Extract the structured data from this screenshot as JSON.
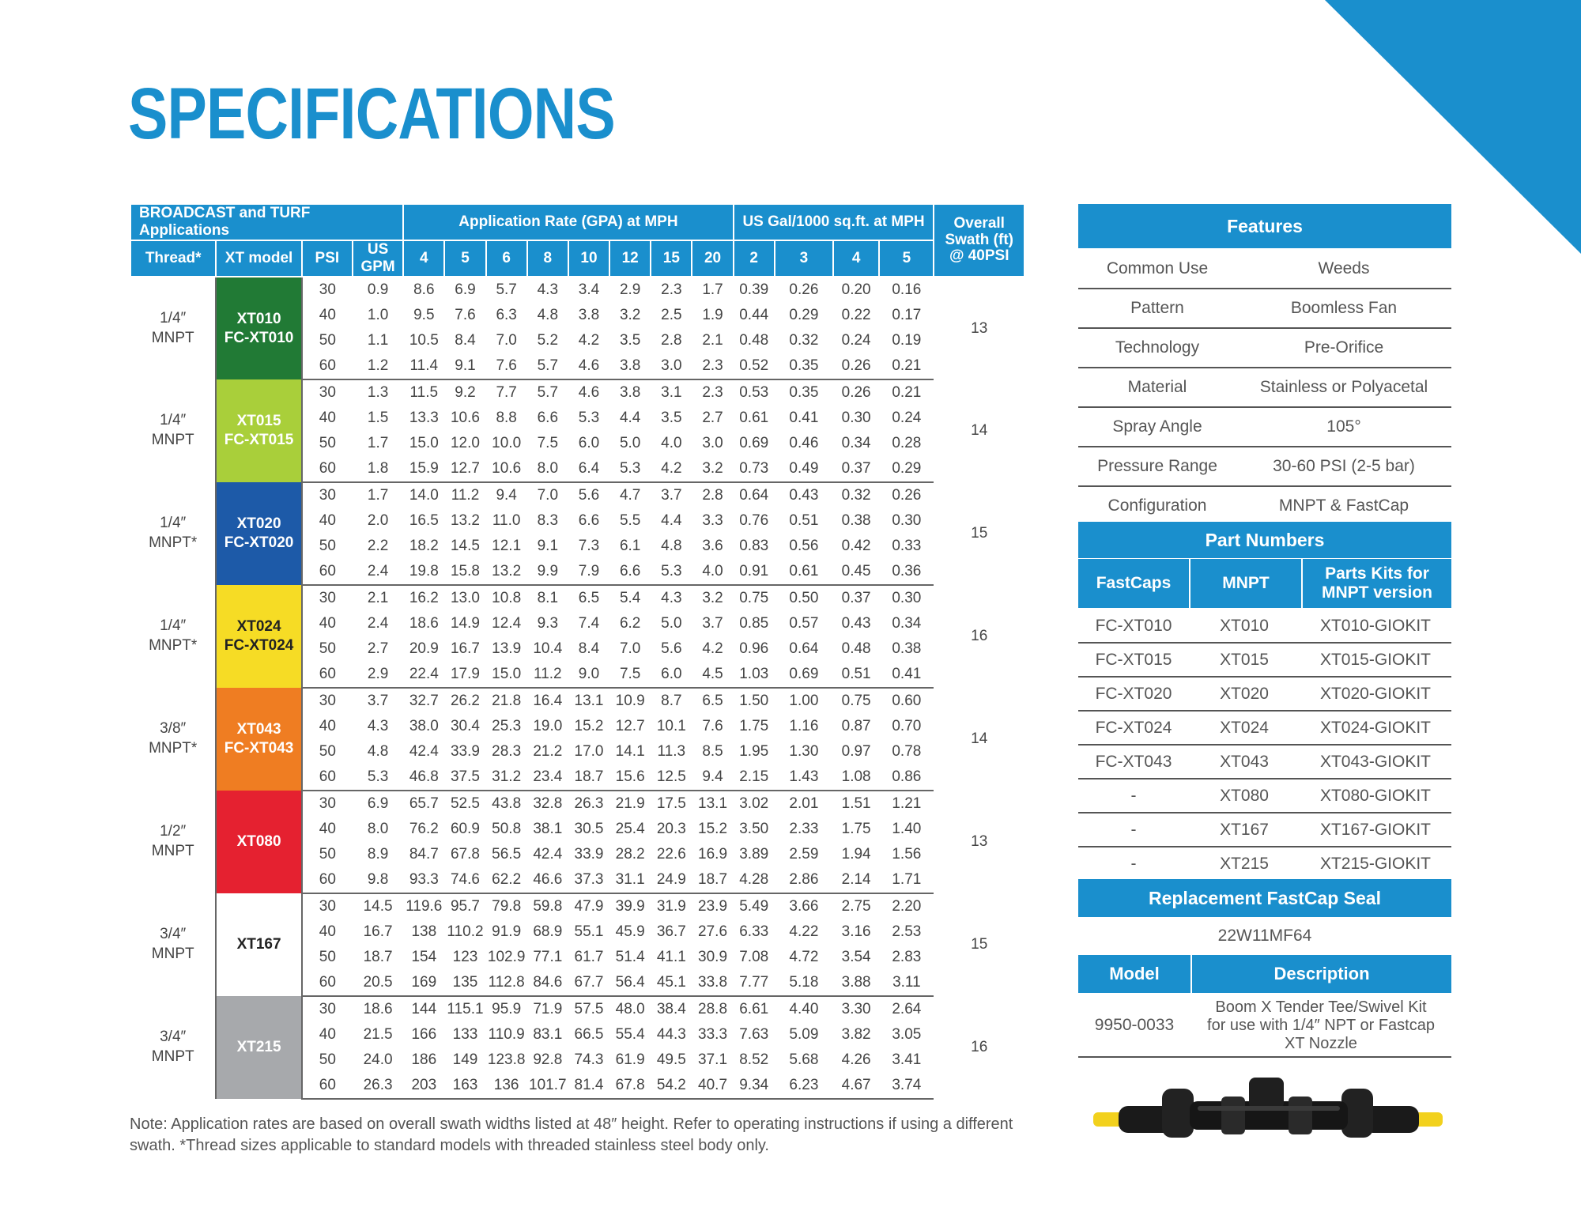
{
  "title": "SPECIFICATIONS",
  "colors": {
    "brand_blue": "#1a8fcd"
  },
  "table": {
    "group_headers": [
      "BROADCAST and TURF Applications",
      "Application Rate (GPA) at MPH",
      "US Gal/1000 sq.ft. at MPH",
      "Overall Swath (ft) @ 40PSI"
    ],
    "columns": [
      "Thread*",
      "XT model",
      "PSI",
      "US GPM",
      "4",
      "5",
      "6",
      "8",
      "10",
      "12",
      "15",
      "20",
      "2",
      "3",
      "4",
      "5"
    ],
    "models": [
      {
        "thread": [
          "1/4″",
          "MNPT"
        ],
        "model": [
          "XT010",
          "FC-XT010"
        ],
        "color": "#217a35",
        "text_color": "#ffffff",
        "swath": "13",
        "rows": [
          [
            "30",
            "0.9",
            "8.6",
            "6.9",
            "5.7",
            "4.3",
            "3.4",
            "2.9",
            "2.3",
            "1.7",
            "0.39",
            "0.26",
            "0.20",
            "0.16"
          ],
          [
            "40",
            "1.0",
            "9.5",
            "7.6",
            "6.3",
            "4.8",
            "3.8",
            "3.2",
            "2.5",
            "1.9",
            "0.44",
            "0.29",
            "0.22",
            "0.17"
          ],
          [
            "50",
            "1.1",
            "10.5",
            "8.4",
            "7.0",
            "5.2",
            "4.2",
            "3.5",
            "2.8",
            "2.1",
            "0.48",
            "0.32",
            "0.24",
            "0.19"
          ],
          [
            "60",
            "1.2",
            "11.4",
            "9.1",
            "7.6",
            "5.7",
            "4.6",
            "3.8",
            "3.0",
            "2.3",
            "0.52",
            "0.35",
            "0.26",
            "0.21"
          ]
        ]
      },
      {
        "thread": [
          "1/4″",
          "MNPT"
        ],
        "model": [
          "XT015",
          "FC-XT015"
        ],
        "color": "#a9cf3a",
        "text_color": "#ffffff",
        "swath": "14",
        "rows": [
          [
            "30",
            "1.3",
            "11.5",
            "9.2",
            "7.7",
            "5.7",
            "4.6",
            "3.8",
            "3.1",
            "2.3",
            "0.53",
            "0.35",
            "0.26",
            "0.21"
          ],
          [
            "40",
            "1.5",
            "13.3",
            "10.6",
            "8.8",
            "6.6",
            "5.3",
            "4.4",
            "3.5",
            "2.7",
            "0.61",
            "0.41",
            "0.30",
            "0.24"
          ],
          [
            "50",
            "1.7",
            "15.0",
            "12.0",
            "10.0",
            "7.5",
            "6.0",
            "5.0",
            "4.0",
            "3.0",
            "0.69",
            "0.46",
            "0.34",
            "0.28"
          ],
          [
            "60",
            "1.8",
            "15.9",
            "12.7",
            "10.6",
            "8.0",
            "6.4",
            "5.3",
            "4.2",
            "3.2",
            "0.73",
            "0.49",
            "0.37",
            "0.29"
          ]
        ]
      },
      {
        "thread": [
          "1/4″",
          "MNPT*"
        ],
        "model": [
          "XT020",
          "FC-XT020"
        ],
        "color": "#1d5aa8",
        "text_color": "#ffffff",
        "swath": "15",
        "rows": [
          [
            "30",
            "1.7",
            "14.0",
            "11.2",
            "9.4",
            "7.0",
            "5.6",
            "4.7",
            "3.7",
            "2.8",
            "0.64",
            "0.43",
            "0.32",
            "0.26"
          ],
          [
            "40",
            "2.0",
            "16.5",
            "13.2",
            "11.0",
            "8.3",
            "6.6",
            "5.5",
            "4.4",
            "3.3",
            "0.76",
            "0.51",
            "0.38",
            "0.30"
          ],
          [
            "50",
            "2.2",
            "18.2",
            "14.5",
            "12.1",
            "9.1",
            "7.3",
            "6.1",
            "4.8",
            "3.6",
            "0.83",
            "0.56",
            "0.42",
            "0.33"
          ],
          [
            "60",
            "2.4",
            "19.8",
            "15.8",
            "13.2",
            "9.9",
            "7.9",
            "6.6",
            "5.3",
            "4.0",
            "0.91",
            "0.61",
            "0.45",
            "0.36"
          ]
        ]
      },
      {
        "thread": [
          "1/4″",
          "MNPT*"
        ],
        "model": [
          "XT024",
          "FC-XT024"
        ],
        "color": "#f6dc25",
        "text_color": "#222222",
        "swath": "16",
        "rows": [
          [
            "30",
            "2.1",
            "16.2",
            "13.0",
            "10.8",
            "8.1",
            "6.5",
            "5.4",
            "4.3",
            "3.2",
            "0.75",
            "0.50",
            "0.37",
            "0.30"
          ],
          [
            "40",
            "2.4",
            "18.6",
            "14.9",
            "12.4",
            "9.3",
            "7.4",
            "6.2",
            "5.0",
            "3.7",
            "0.85",
            "0.57",
            "0.43",
            "0.34"
          ],
          [
            "50",
            "2.7",
            "20.9",
            "16.7",
            "13.9",
            "10.4",
            "8.4",
            "7.0",
            "5.6",
            "4.2",
            "0.96",
            "0.64",
            "0.48",
            "0.38"
          ],
          [
            "60",
            "2.9",
            "22.4",
            "17.9",
            "15.0",
            "11.2",
            "9.0",
            "7.5",
            "6.0",
            "4.5",
            "1.03",
            "0.69",
            "0.51",
            "0.41"
          ]
        ]
      },
      {
        "thread": [
          "3/8″",
          "MNPT*"
        ],
        "model": [
          "XT043",
          "FC-XT043"
        ],
        "color": "#ef7d22",
        "text_color": "#ffffff",
        "swath": "14",
        "rows": [
          [
            "30",
            "3.7",
            "32.7",
            "26.2",
            "21.8",
            "16.4",
            "13.1",
            "10.9",
            "8.7",
            "6.5",
            "1.50",
            "1.00",
            "0.75",
            "0.60"
          ],
          [
            "40",
            "4.3",
            "38.0",
            "30.4",
            "25.3",
            "19.0",
            "15.2",
            "12.7",
            "10.1",
            "7.6",
            "1.75",
            "1.16",
            "0.87",
            "0.70"
          ],
          [
            "50",
            "4.8",
            "42.4",
            "33.9",
            "28.3",
            "21.2",
            "17.0",
            "14.1",
            "11.3",
            "8.5",
            "1.95",
            "1.30",
            "0.97",
            "0.78"
          ],
          [
            "60",
            "5.3",
            "46.8",
            "37.5",
            "31.2",
            "23.4",
            "18.7",
            "15.6",
            "12.5",
            "9.4",
            "2.15",
            "1.43",
            "1.08",
            "0.86"
          ]
        ]
      },
      {
        "thread": [
          "1/2″",
          "MNPT"
        ],
        "model": [
          "XT080"
        ],
        "color": "#e52130",
        "text_color": "#ffffff",
        "swath": "13",
        "rows": [
          [
            "30",
            "6.9",
            "65.7",
            "52.5",
            "43.8",
            "32.8",
            "26.3",
            "21.9",
            "17.5",
            "13.1",
            "3.02",
            "2.01",
            "1.51",
            "1.21"
          ],
          [
            "40",
            "8.0",
            "76.2",
            "60.9",
            "50.8",
            "38.1",
            "30.5",
            "25.4",
            "20.3",
            "15.2",
            "3.50",
            "2.33",
            "1.75",
            "1.40"
          ],
          [
            "50",
            "8.9",
            "84.7",
            "67.8",
            "56.5",
            "42.4",
            "33.9",
            "28.2",
            "22.6",
            "16.9",
            "3.89",
            "2.59",
            "1.94",
            "1.56"
          ],
          [
            "60",
            "9.8",
            "93.3",
            "74.6",
            "62.2",
            "46.6",
            "37.3",
            "31.1",
            "24.9",
            "18.7",
            "4.28",
            "2.86",
            "2.14",
            "1.71"
          ]
        ]
      },
      {
        "thread": [
          "3/4″",
          "MNPT"
        ],
        "model": [
          "XT167"
        ],
        "color": "#ffffff",
        "text_color": "#222222",
        "swath": "15",
        "rows": [
          [
            "30",
            "14.5",
            "119.6",
            "95.7",
            "79.8",
            "59.8",
            "47.9",
            "39.9",
            "31.9",
            "23.9",
            "5.49",
            "3.66",
            "2.75",
            "2.20"
          ],
          [
            "40",
            "16.7",
            "138",
            "110.2",
            "91.9",
            "68.9",
            "55.1",
            "45.9",
            "36.7",
            "27.6",
            "6.33",
            "4.22",
            "3.16",
            "2.53"
          ],
          [
            "50",
            "18.7",
            "154",
            "123",
            "102.9",
            "77.1",
            "61.7",
            "51.4",
            "41.1",
            "30.9",
            "7.08",
            "4.72",
            "3.54",
            "2.83"
          ],
          [
            "60",
            "20.5",
            "169",
            "135",
            "112.8",
            "84.6",
            "67.7",
            "56.4",
            "45.1",
            "33.8",
            "7.77",
            "5.18",
            "3.88",
            "3.11"
          ]
        ]
      },
      {
        "thread": [
          "3/4″",
          "MNPT"
        ],
        "model": [
          "XT215"
        ],
        "color": "#a7a9ac",
        "text_color": "#ffffff",
        "swath": "16",
        "rows": [
          [
            "30",
            "18.6",
            "144",
            "115.1",
            "95.9",
            "71.9",
            "57.5",
            "48.0",
            "38.4",
            "28.8",
            "6.61",
            "4.40",
            "3.30",
            "2.64"
          ],
          [
            "40",
            "21.5",
            "166",
            "133",
            "110.9",
            "83.1",
            "66.5",
            "55.4",
            "44.3",
            "33.3",
            "7.63",
            "5.09",
            "3.82",
            "3.05"
          ],
          [
            "50",
            "24.0",
            "186",
            "149",
            "123.8",
            "92.8",
            "74.3",
            "61.9",
            "49.5",
            "37.1",
            "8.52",
            "5.68",
            "4.26",
            "3.41"
          ],
          [
            "60",
            "26.3",
            "203",
            "163",
            "136",
            "101.7",
            "81.4",
            "67.8",
            "54.2",
            "40.7",
            "9.34",
            "6.23",
            "4.67",
            "3.74"
          ]
        ]
      }
    ]
  },
  "note": "Note: Application rates are based on overall swath widths listed at 48″ height. Refer to operating instructions if using a different swath. *Thread sizes applicable to standard models with threaded stainless steel body only.",
  "features": {
    "heading": "Features",
    "rows": [
      {
        "label": "Common Use",
        "value": "Weeds"
      },
      {
        "label": "Pattern",
        "value": "Boomless Fan"
      },
      {
        "label": "Technology",
        "value": "Pre-Orifice"
      },
      {
        "label": "Material",
        "value": "Stainless or Polyacetal"
      },
      {
        "label": "Spray Angle",
        "value": "105°"
      },
      {
        "label": "Pressure Range",
        "value": "30-60 PSI (2-5 bar)"
      },
      {
        "label": "Configuration",
        "value": "MNPT & FastCap"
      }
    ]
  },
  "part_numbers": {
    "heading": "Part Numbers",
    "columns": [
      "FastCaps",
      "MNPT",
      "Parts Kits for MNPT version"
    ],
    "rows": [
      [
        "FC-XT010",
        "XT010",
        "XT010-GIOKIT"
      ],
      [
        "FC-XT015",
        "XT015",
        "XT015-GIOKIT"
      ],
      [
        "FC-XT020",
        "XT020",
        "XT020-GIOKIT"
      ],
      [
        "FC-XT024",
        "XT024",
        "XT024-GIOKIT"
      ],
      [
        "FC-XT043",
        "XT043",
        "XT043-GIOKIT"
      ],
      [
        "-",
        "XT080",
        "XT080-GIOKIT"
      ],
      [
        "-",
        "XT167",
        "XT167-GIOKIT"
      ],
      [
        "-",
        "XT215",
        "XT215-GIOKIT"
      ]
    ]
  },
  "seal": {
    "heading": "Replacement FastCap Seal",
    "part": "22W11MF64"
  },
  "model_table": {
    "columns": [
      "Model",
      "Description"
    ],
    "rows": [
      {
        "model": "9950-0033",
        "description": [
          "Boom X Tender Tee/Swivel Kit",
          "for use with 1/4″ NPT or Fastcap",
          "XT Nozzle"
        ]
      }
    ]
  }
}
